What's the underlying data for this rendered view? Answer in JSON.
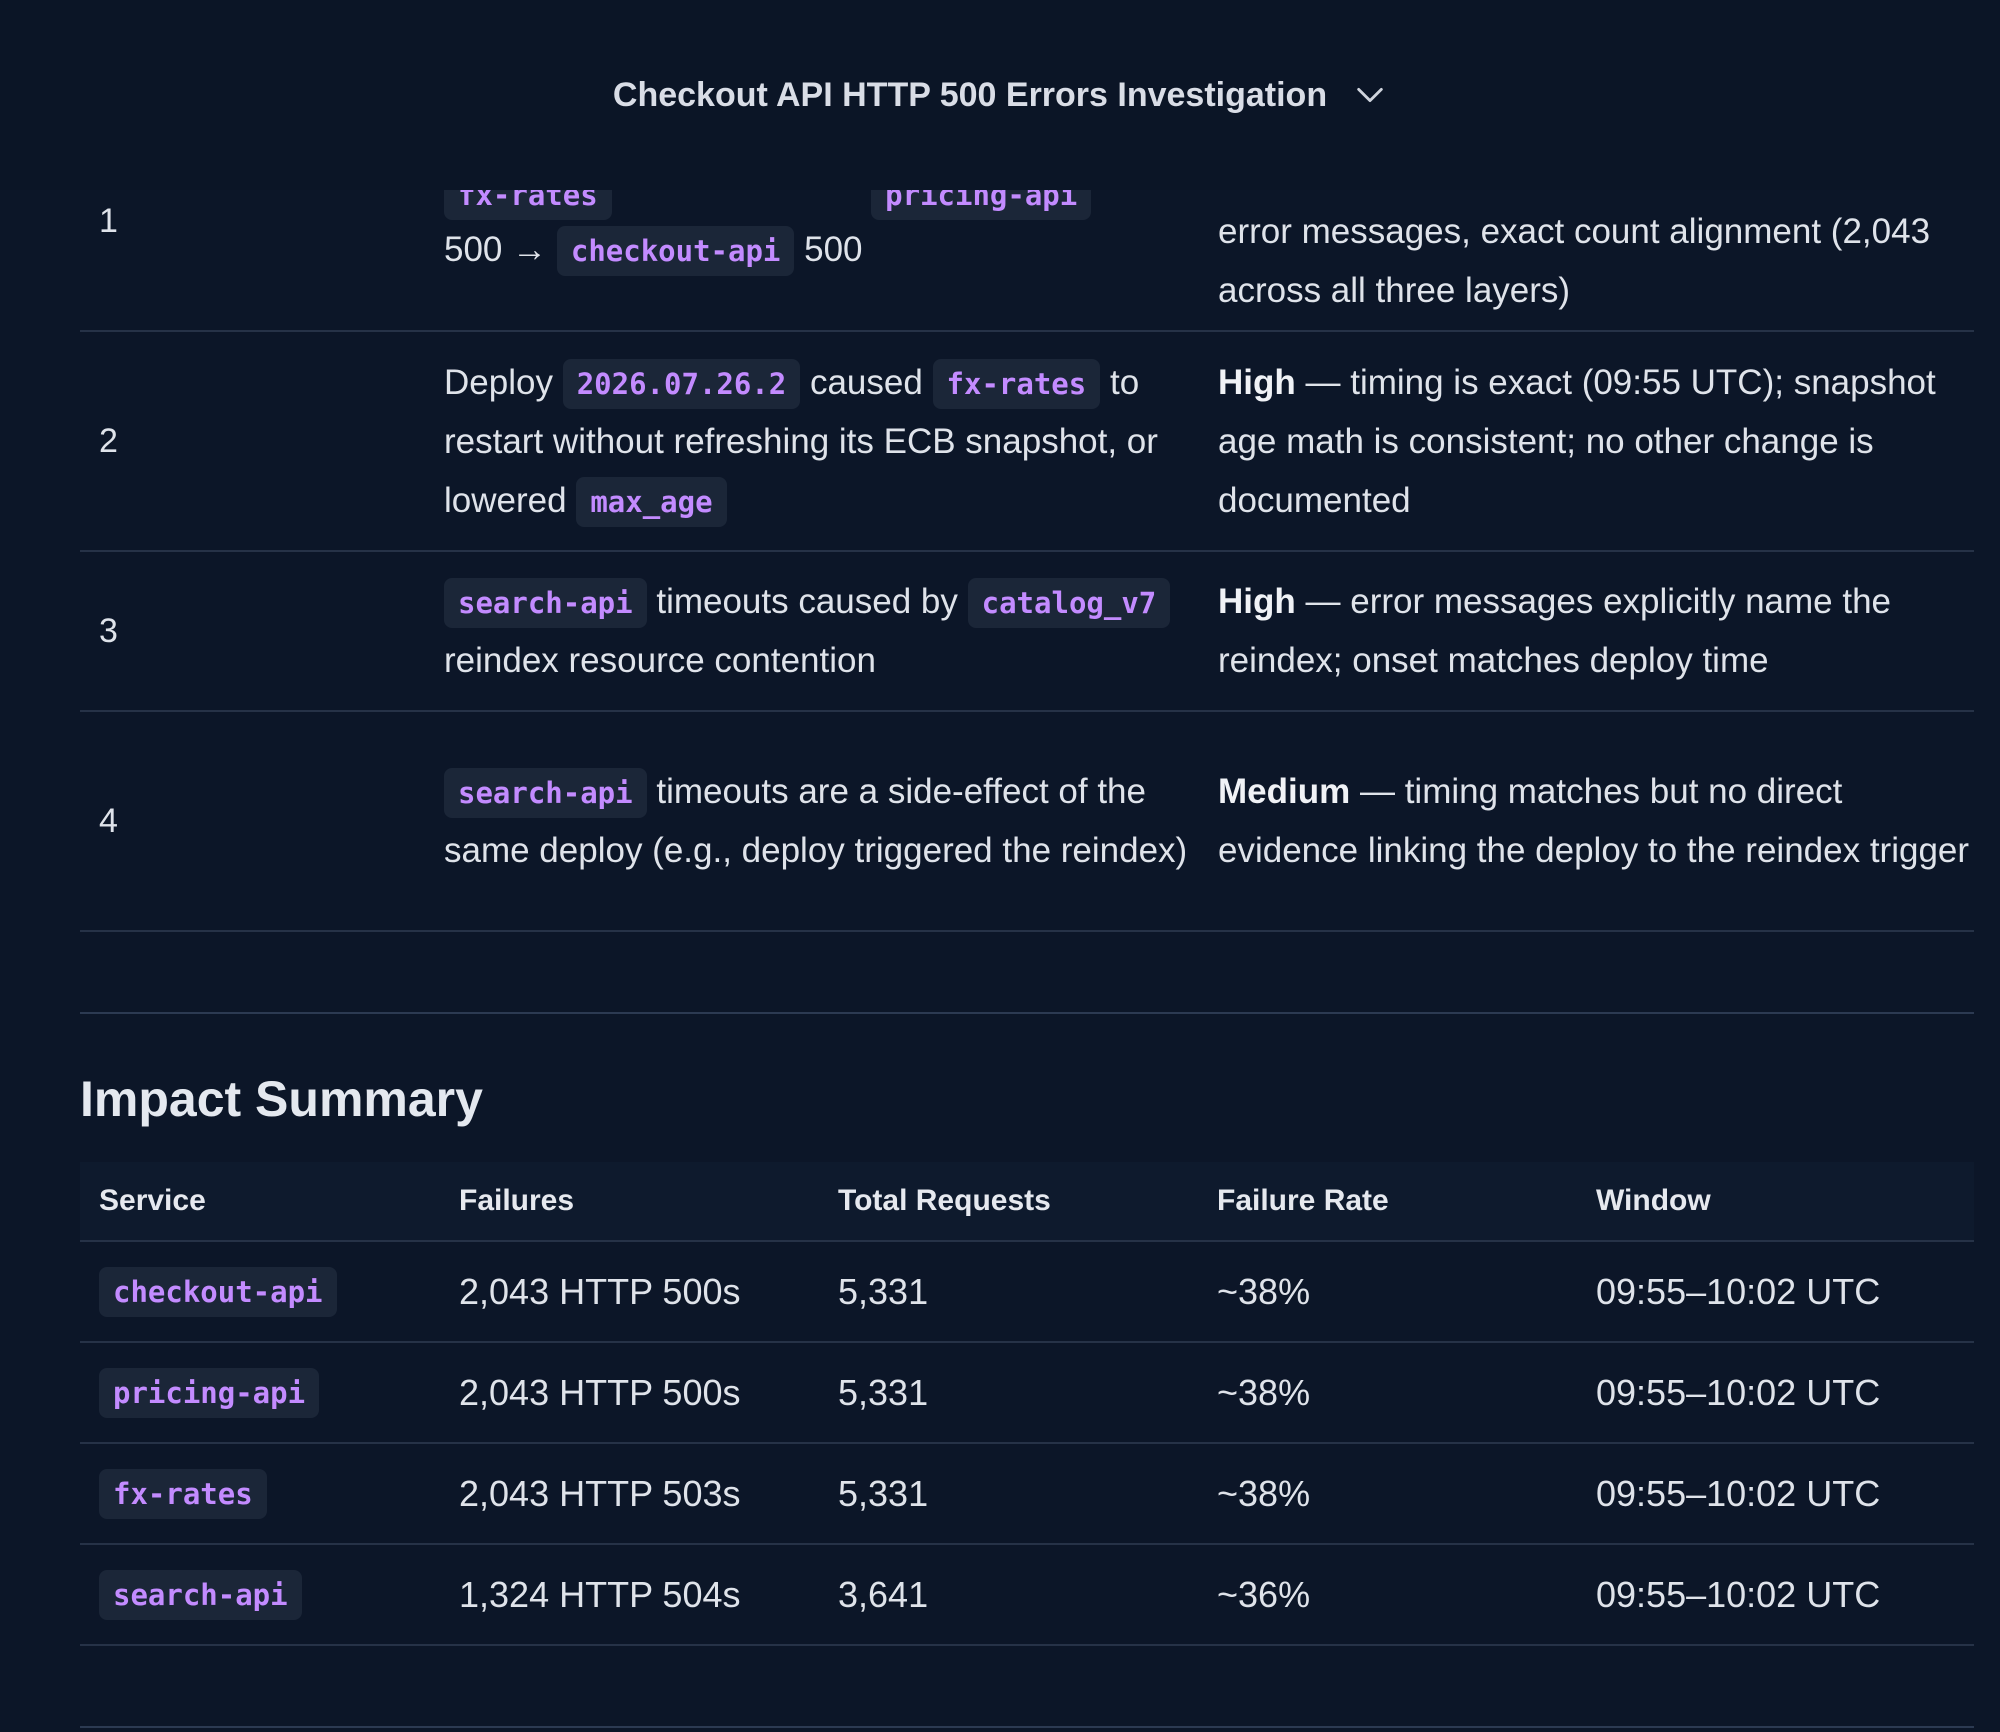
{
  "header": {
    "title": "Checkout API HTTP 500 Errors Investigation",
    "toggle_icon": "chevron-down-icon"
  },
  "hypotheses": [
    {
      "number": "1",
      "desc_partial_code": [
        "fx-rates",
        "pricing-api"
      ],
      "desc_prefix": "500 →",
      "desc_code": "checkout-api",
      "desc_suffix": "500",
      "confidence_text": "error messages, exact count alignment (2,043 across all three layers)"
    },
    {
      "number": "2",
      "desc_1": "Deploy",
      "desc_code_1": "2026.07.26.2",
      "desc_2": "caused",
      "desc_code_2": "fx-rates",
      "desc_3": "to restart without refreshing its ECB snapshot, or lowered",
      "desc_code_3": "max_age",
      "confidence_level": "High",
      "confidence_text": "— timing is exact (09:55 UTC); snapshot age math is consistent; no other change is documented"
    },
    {
      "number": "3",
      "desc_code_1": "search-api",
      "desc_1": "timeouts caused by",
      "desc_code_2": "catalog_v7",
      "desc_2": "reindex resource contention",
      "confidence_level": "High",
      "confidence_text": "— error messages explicitly name the reindex; onset matches deploy time"
    },
    {
      "number": "4",
      "desc_code_1": "search-api",
      "desc_1": "timeouts are a side-effect of the same deploy (e.g., deploy triggered the reindex)",
      "confidence_level": "Medium",
      "confidence_text": "— timing matches but no direct evidence linking the deploy to the reindex trigger"
    }
  ],
  "impact": {
    "title": "Impact Summary",
    "columns": [
      "Service",
      "Failures",
      "Total Requests",
      "Failure Rate",
      "Window"
    ],
    "rows": [
      {
        "service": "checkout-api",
        "failures": "2,043 HTTP 500s",
        "total": "5,331",
        "rate": "~38%",
        "window": "09:55–10:02 UTC"
      },
      {
        "service": "pricing-api",
        "failures": "2,043 HTTP 500s",
        "total": "5,331",
        "rate": "~38%",
        "window": "09:55–10:02 UTC"
      },
      {
        "service": "fx-rates",
        "failures": "2,043 HTTP 503s",
        "total": "5,331",
        "rate": "~38%",
        "window": "09:55–10:02 UTC"
      },
      {
        "service": "search-api",
        "failures": "1,324 HTTP 504s",
        "total": "3,641",
        "rate": "~36%",
        "window": "09:55–10:02 UTC"
      }
    ]
  },
  "colors": {
    "background": "#0c1628",
    "code_text": "#c38bff",
    "code_bg": "#1b2638",
    "border": "#263247"
  }
}
